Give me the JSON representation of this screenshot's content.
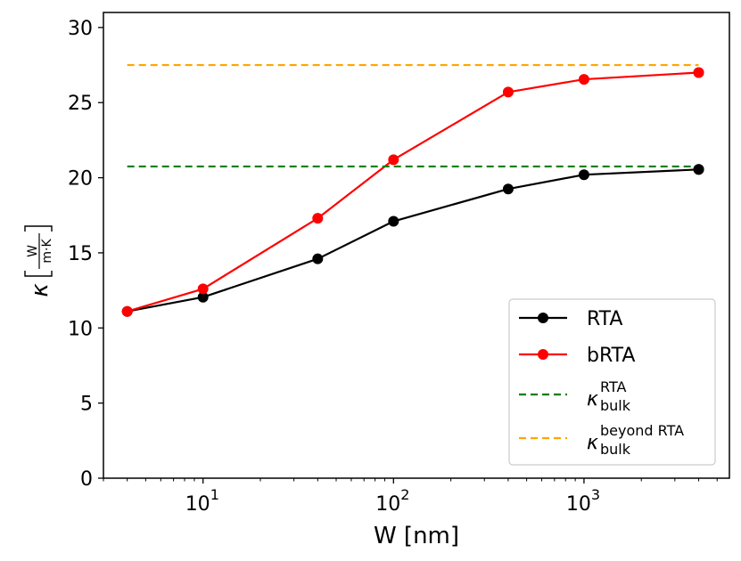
{
  "chart_data": {
    "type": "line",
    "x_scale": "log",
    "x": [
      4,
      10,
      40,
      100,
      400,
      1000,
      4000
    ],
    "xlim": [
      3,
      5800
    ],
    "ylim": [
      0,
      31
    ],
    "x_ticks": [
      {
        "value": 10,
        "base": "10",
        "exp": "1"
      },
      {
        "value": 100,
        "base": "10",
        "exp": "2"
      },
      {
        "value": 1000,
        "base": "10",
        "exp": "3"
      }
    ],
    "y_ticks": [
      {
        "value": 0,
        "label": "0"
      },
      {
        "value": 5,
        "label": "5"
      },
      {
        "value": 10,
        "label": "10"
      },
      {
        "value": 15,
        "label": "15"
      },
      {
        "value": 20,
        "label": "20"
      },
      {
        "value": 25,
        "label": "25"
      },
      {
        "value": 30,
        "label": "30"
      }
    ],
    "xlabel": "W [nm]",
    "ylabel": {
      "symbol": "κ",
      "num": "W",
      "den": "m·K"
    },
    "series": [
      {
        "key": "rta",
        "name": "RTA",
        "color": "#000000",
        "style": "solid-marker",
        "values": [
          11.1,
          12.05,
          14.6,
          17.1,
          19.25,
          20.2,
          20.55
        ]
      },
      {
        "key": "brta",
        "name": "bRTA",
        "color": "#ff0000",
        "style": "solid-marker",
        "values": [
          11.1,
          12.6,
          17.3,
          21.2,
          25.7,
          26.55,
          27.0
        ]
      }
    ],
    "reference_lines": [
      {
        "key": "bulk-rta",
        "value": 20.75,
        "x_range": [
          4,
          4000
        ],
        "color": "#008000",
        "style": "dashed",
        "legend": {
          "symbol": "κ",
          "sub": "bulk",
          "sup": "RTA"
        }
      },
      {
        "key": "bulk-beyond",
        "value": 27.5,
        "x_range": [
          4,
          4000
        ],
        "color": "#ffa500",
        "style": "dashed",
        "legend": {
          "symbol": "κ",
          "sub": "bulk",
          "sup": "beyond RTA"
        }
      }
    ],
    "legend_position": "lower-right",
    "grid": false
  }
}
